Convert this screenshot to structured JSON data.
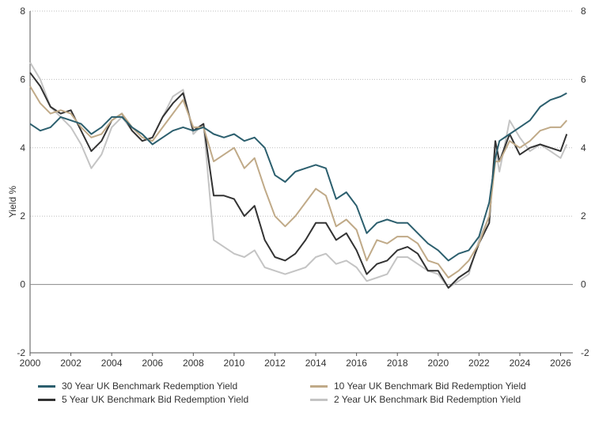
{
  "chart_data": {
    "type": "line",
    "title": "",
    "ylabel": "Yield %",
    "xlabel": "",
    "xlim": [
      2000,
      2026.6
    ],
    "ylim": [
      -2,
      8
    ],
    "x_ticks": [
      "2000",
      "2002",
      "2004",
      "2006",
      "2008",
      "2010",
      "2012",
      "2014",
      "2016",
      "2018",
      "2020",
      "2022",
      "2024",
      "2026"
    ],
    "y_ticks": [
      "-2",
      "0",
      "2",
      "4",
      "6",
      "8"
    ],
    "grid": "horizontal dotted",
    "legend_position": "bottom",
    "series": [
      {
        "name": "30 Year UK Benchmark Redemption Yield",
        "color": "#2c5f6e",
        "points": [
          [
            2000,
            4.7
          ],
          [
            2000.5,
            4.5
          ],
          [
            2001,
            4.6
          ],
          [
            2001.5,
            4.9
          ],
          [
            2002,
            4.8
          ],
          [
            2002.5,
            4.7
          ],
          [
            2003,
            4.4
          ],
          [
            2003.5,
            4.6
          ],
          [
            2004,
            4.9
          ],
          [
            2004.5,
            4.9
          ],
          [
            2005,
            4.6
          ],
          [
            2005.5,
            4.4
          ],
          [
            2006,
            4.1
          ],
          [
            2006.5,
            4.3
          ],
          [
            2007,
            4.5
          ],
          [
            2007.5,
            4.6
          ],
          [
            2008,
            4.5
          ],
          [
            2008.5,
            4.6
          ],
          [
            2009,
            4.4
          ],
          [
            2009.5,
            4.3
          ],
          [
            2010,
            4.4
          ],
          [
            2010.5,
            4.2
          ],
          [
            2011,
            4.3
          ],
          [
            2011.5,
            4.0
          ],
          [
            2012,
            3.2
          ],
          [
            2012.5,
            3.0
          ],
          [
            2013,
            3.3
          ],
          [
            2013.5,
            3.4
          ],
          [
            2014,
            3.5
          ],
          [
            2014.5,
            3.4
          ],
          [
            2015,
            2.5
          ],
          [
            2015.5,
            2.7
          ],
          [
            2016,
            2.3
          ],
          [
            2016.5,
            1.5
          ],
          [
            2017,
            1.8
          ],
          [
            2017.5,
            1.9
          ],
          [
            2018,
            1.8
          ],
          [
            2018.5,
            1.8
          ],
          [
            2019,
            1.5
          ],
          [
            2019.5,
            1.2
          ],
          [
            2020,
            1.0
          ],
          [
            2020.5,
            0.7
          ],
          [
            2021,
            0.9
          ],
          [
            2021.5,
            1.0
          ],
          [
            2022,
            1.4
          ],
          [
            2022.5,
            2.4
          ],
          [
            2022.8,
            3.7
          ],
          [
            2023,
            4.2
          ],
          [
            2023.5,
            4.4
          ],
          [
            2024,
            4.6
          ],
          [
            2024.5,
            4.8
          ],
          [
            2025,
            5.2
          ],
          [
            2025.5,
            5.4
          ],
          [
            2026,
            5.5
          ],
          [
            2026.3,
            5.6
          ]
        ]
      },
      {
        "name": "10 Year UK Benchmark Bid Redemption Yield",
        "color": "#c0aa88",
        "points": [
          [
            2000,
            5.8
          ],
          [
            2000.5,
            5.3
          ],
          [
            2001,
            5.0
          ],
          [
            2001.5,
            5.1
          ],
          [
            2002,
            5.0
          ],
          [
            2002.5,
            4.6
          ],
          [
            2003,
            4.3
          ],
          [
            2003.5,
            4.4
          ],
          [
            2004,
            4.8
          ],
          [
            2004.5,
            5.0
          ],
          [
            2005,
            4.6
          ],
          [
            2005.5,
            4.3
          ],
          [
            2006,
            4.2
          ],
          [
            2006.5,
            4.6
          ],
          [
            2007,
            5.0
          ],
          [
            2007.5,
            5.4
          ],
          [
            2008,
            4.6
          ],
          [
            2008.5,
            4.6
          ],
          [
            2009,
            3.6
          ],
          [
            2009.5,
            3.8
          ],
          [
            2010,
            4.0
          ],
          [
            2010.5,
            3.4
          ],
          [
            2011,
            3.7
          ],
          [
            2011.5,
            2.8
          ],
          [
            2012,
            2.0
          ],
          [
            2012.5,
            1.7
          ],
          [
            2013,
            2.0
          ],
          [
            2013.5,
            2.4
          ],
          [
            2014,
            2.8
          ],
          [
            2014.5,
            2.6
          ],
          [
            2015,
            1.7
          ],
          [
            2015.5,
            1.9
          ],
          [
            2016,
            1.6
          ],
          [
            2016.5,
            0.7
          ],
          [
            2017,
            1.3
          ],
          [
            2017.5,
            1.2
          ],
          [
            2018,
            1.4
          ],
          [
            2018.5,
            1.4
          ],
          [
            2019,
            1.2
          ],
          [
            2019.5,
            0.7
          ],
          [
            2020,
            0.6
          ],
          [
            2020.5,
            0.2
          ],
          [
            2021,
            0.4
          ],
          [
            2021.5,
            0.7
          ],
          [
            2022,
            1.2
          ],
          [
            2022.5,
            2.0
          ],
          [
            2022.8,
            3.6
          ],
          [
            2023,
            3.6
          ],
          [
            2023.5,
            4.2
          ],
          [
            2024,
            4.0
          ],
          [
            2024.5,
            4.2
          ],
          [
            2025,
            4.5
          ],
          [
            2025.5,
            4.6
          ],
          [
            2026,
            4.6
          ],
          [
            2026.3,
            4.8
          ]
        ]
      },
      {
        "name": "5 Year UK Benchmark Bid Redemption Yield",
        "color": "#333333",
        "points": [
          [
            2000,
            6.2
          ],
          [
            2000.5,
            5.8
          ],
          [
            2001,
            5.2
          ],
          [
            2001.5,
            5.0
          ],
          [
            2002,
            5.1
          ],
          [
            2002.5,
            4.5
          ],
          [
            2003,
            3.9
          ],
          [
            2003.5,
            4.2
          ],
          [
            2004,
            4.8
          ],
          [
            2004.5,
            5.0
          ],
          [
            2005,
            4.5
          ],
          [
            2005.5,
            4.2
          ],
          [
            2006,
            4.3
          ],
          [
            2006.5,
            4.9
          ],
          [
            2007,
            5.3
          ],
          [
            2007.5,
            5.6
          ],
          [
            2008,
            4.5
          ],
          [
            2008.5,
            4.7
          ],
          [
            2009,
            2.6
          ],
          [
            2009.5,
            2.6
          ],
          [
            2010,
            2.5
          ],
          [
            2010.5,
            2.0
          ],
          [
            2011,
            2.3
          ],
          [
            2011.5,
            1.3
          ],
          [
            2012,
            0.8
          ],
          [
            2012.5,
            0.7
          ],
          [
            2013,
            0.9
          ],
          [
            2013.5,
            1.3
          ],
          [
            2014,
            1.8
          ],
          [
            2014.5,
            1.8
          ],
          [
            2015,
            1.3
          ],
          [
            2015.5,
            1.5
          ],
          [
            2016,
            1.0
          ],
          [
            2016.5,
            0.3
          ],
          [
            2017,
            0.6
          ],
          [
            2017.5,
            0.7
          ],
          [
            2018,
            1.0
          ],
          [
            2018.5,
            1.1
          ],
          [
            2019,
            0.9
          ],
          [
            2019.5,
            0.4
          ],
          [
            2020,
            0.4
          ],
          [
            2020.5,
            -0.1
          ],
          [
            2021,
            0.2
          ],
          [
            2021.5,
            0.4
          ],
          [
            2022,
            1.2
          ],
          [
            2022.5,
            1.8
          ],
          [
            2022.8,
            4.2
          ],
          [
            2023,
            3.6
          ],
          [
            2023.5,
            4.4
          ],
          [
            2024,
            3.8
          ],
          [
            2024.5,
            4.0
          ],
          [
            2025,
            4.1
          ],
          [
            2025.5,
            4.0
          ],
          [
            2026,
            3.9
          ],
          [
            2026.3,
            4.4
          ]
        ]
      },
      {
        "name": "2 Year UK Benchmark Bid Redemption Yield",
        "color": "#c4c4c4",
        "points": [
          [
            2000,
            6.5
          ],
          [
            2000.5,
            6.0
          ],
          [
            2001,
            5.2
          ],
          [
            2001.5,
            4.9
          ],
          [
            2002,
            4.6
          ],
          [
            2002.5,
            4.1
          ],
          [
            2003,
            3.4
          ],
          [
            2003.5,
            3.8
          ],
          [
            2004,
            4.6
          ],
          [
            2004.5,
            4.9
          ],
          [
            2005,
            4.5
          ],
          [
            2005.5,
            4.2
          ],
          [
            2006,
            4.3
          ],
          [
            2006.5,
            4.9
          ],
          [
            2007,
            5.5
          ],
          [
            2007.5,
            5.7
          ],
          [
            2008,
            4.4
          ],
          [
            2008.5,
            4.7
          ],
          [
            2009,
            1.3
          ],
          [
            2009.5,
            1.1
          ],
          [
            2010,
            0.9
          ],
          [
            2010.5,
            0.8
          ],
          [
            2011,
            1.0
          ],
          [
            2011.5,
            0.5
          ],
          [
            2012,
            0.4
          ],
          [
            2012.5,
            0.3
          ],
          [
            2013,
            0.4
          ],
          [
            2013.5,
            0.5
          ],
          [
            2014,
            0.8
          ],
          [
            2014.5,
            0.9
          ],
          [
            2015,
            0.6
          ],
          [
            2015.5,
            0.7
          ],
          [
            2016,
            0.5
          ],
          [
            2016.5,
            0.1
          ],
          [
            2017,
            0.2
          ],
          [
            2017.5,
            0.3
          ],
          [
            2018,
            0.8
          ],
          [
            2018.5,
            0.8
          ],
          [
            2019,
            0.6
          ],
          [
            2019.5,
            0.4
          ],
          [
            2020,
            0.3
          ],
          [
            2020.5,
            -0.1
          ],
          [
            2021,
            0.1
          ],
          [
            2021.5,
            0.3
          ],
          [
            2022,
            1.3
          ],
          [
            2022.5,
            2.0
          ],
          [
            2022.8,
            4.0
          ],
          [
            2023,
            3.3
          ],
          [
            2023.5,
            4.8
          ],
          [
            2024,
            4.3
          ],
          [
            2024.5,
            3.9
          ],
          [
            2025,
            4.1
          ],
          [
            2025.5,
            3.9
          ],
          [
            2026,
            3.7
          ],
          [
            2026.3,
            4.1
          ]
        ]
      }
    ]
  }
}
